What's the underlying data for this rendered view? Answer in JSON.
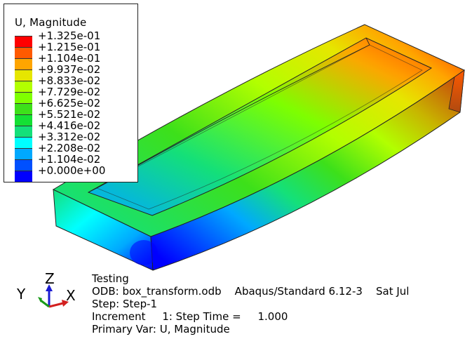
{
  "legend": {
    "title": "U, Magnitude",
    "levels": [
      {
        "label": "+1.325e-01",
        "color": "#ff0000"
      },
      {
        "label": "+1.215e-01",
        "color": "#ff5a00"
      },
      {
        "label": "+1.104e-01",
        "color": "#ffa500"
      },
      {
        "label": "+9.937e-02",
        "color": "#e6e600"
      },
      {
        "label": "+8.833e-02",
        "color": "#b2ff00"
      },
      {
        "label": "+7.729e-02",
        "color": "#7fff00"
      },
      {
        "label": "+6.625e-02",
        "color": "#3de01a"
      },
      {
        "label": "+5.521e-02",
        "color": "#14e034"
      },
      {
        "label": "+4.416e-02",
        "color": "#14e07a"
      },
      {
        "label": "+3.312e-02",
        "color": "#00ffff"
      },
      {
        "label": "+2.208e-02",
        "color": "#00a9ff"
      },
      {
        "label": "+1.104e-02",
        "color": "#0050ff"
      },
      {
        "label": "+0.000e+00",
        "color": "#0000ff"
      }
    ]
  },
  "info": {
    "line1": "Testing",
    "line2": "ODB: box_transform.odb    Abaqus/Standard 6.12-3    Sat Jul",
    "line3": "Step: Step-1",
    "line4": "Increment     1: Step Time =     1.000",
    "line5": "Primary Var: U, Magnitude"
  },
  "triad": {
    "x": "X",
    "y": "Y",
    "z": "Z",
    "x_color": "#d22020",
    "y_color": "#1a9a1a",
    "z_color": "#1a1ad2"
  }
}
